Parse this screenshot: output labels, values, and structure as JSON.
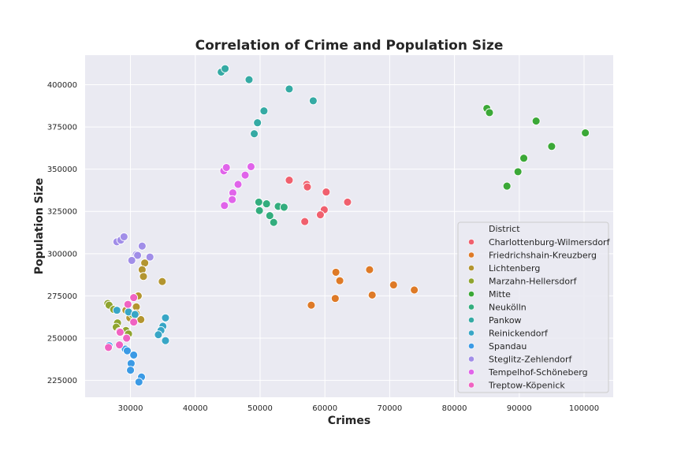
{
  "chart_data": {
    "type": "scatter",
    "title": "Correlation of Crime and Population Size",
    "xlabel": "Crimes",
    "ylabel": "Population Size",
    "xlim": [
      23000,
      104500
    ],
    "ylim": [
      215000,
      417500
    ],
    "xticks": [
      30000,
      40000,
      50000,
      60000,
      70000,
      80000,
      90000,
      100000
    ],
    "yticks": [
      225000,
      250000,
      275000,
      300000,
      325000,
      350000,
      375000,
      400000
    ],
    "grid": true,
    "legend": {
      "title": "District",
      "position": "lower-right"
    },
    "series": [
      {
        "name": "Charlottenburg-Wilmersdorf",
        "color": "#f0606e",
        "points": [
          [
            54500,
            343500
          ],
          [
            57200,
            341000
          ],
          [
            57300,
            339500
          ],
          [
            60200,
            336500
          ],
          [
            63500,
            330500
          ],
          [
            59900,
            326000
          ],
          [
            59300,
            323000
          ],
          [
            56900,
            319000
          ]
        ]
      },
      {
        "name": "Friedrichshain-Kreuzberg",
        "color": "#de7a27",
        "points": [
          [
            61700,
            289000
          ],
          [
            66900,
            290500
          ],
          [
            62300,
            284000
          ],
          [
            70600,
            281500
          ],
          [
            73800,
            278500
          ],
          [
            67300,
            275500
          ],
          [
            61600,
            273500
          ],
          [
            57900,
            269500
          ]
        ]
      },
      {
        "name": "Lichtenberg",
        "color": "#b39530",
        "points": [
          [
            32200,
            294500
          ],
          [
            31800,
            290500
          ],
          [
            34900,
            283500
          ],
          [
            32000,
            286500
          ],
          [
            31200,
            275000
          ],
          [
            30900,
            268500
          ],
          [
            31600,
            261000
          ],
          [
            29300,
            266500
          ],
          [
            30900,
            264500
          ],
          [
            29900,
            262000
          ]
        ]
      },
      {
        "name": "Marzahn-Hellersdorf",
        "color": "#8fa42f",
        "points": [
          [
            26500,
            270500
          ],
          [
            26700,
            269500
          ],
          [
            27400,
            267000
          ],
          [
            28000,
            259000
          ],
          [
            27800,
            256500
          ],
          [
            29300,
            254500
          ],
          [
            29700,
            252500
          ],
          [
            30300,
            264000
          ]
        ]
      },
      {
        "name": "Mitte",
        "color": "#3ba837",
        "points": [
          [
            85000,
            386000
          ],
          [
            85400,
            383500
          ],
          [
            92600,
            378500
          ],
          [
            100200,
            371500
          ],
          [
            95000,
            363500
          ],
          [
            90700,
            356500
          ],
          [
            89800,
            348500
          ],
          [
            88100,
            340000
          ]
        ]
      },
      {
        "name": "Neukölln",
        "color": "#33ad7e",
        "points": [
          [
            49800,
            330500
          ],
          [
            51000,
            329500
          ],
          [
            52800,
            328000
          ],
          [
            53700,
            327500
          ],
          [
            49900,
            325500
          ],
          [
            51500,
            322500
          ],
          [
            52100,
            318500
          ]
        ]
      },
      {
        "name": "Pankow",
        "color": "#35aaa4",
        "points": [
          [
            44000,
            407500
          ],
          [
            44600,
            409500
          ],
          [
            48300,
            403000
          ],
          [
            54500,
            397500
          ],
          [
            58200,
            390500
          ],
          [
            50600,
            384500
          ],
          [
            49600,
            377500
          ],
          [
            49100,
            371000
          ]
        ]
      },
      {
        "name": "Reinickendorf",
        "color": "#38a6c6",
        "points": [
          [
            27900,
            266500
          ],
          [
            29700,
            265500
          ],
          [
            30700,
            264000
          ],
          [
            35400,
            262000
          ],
          [
            35000,
            257000
          ],
          [
            34700,
            254500
          ],
          [
            34300,
            252000
          ],
          [
            35400,
            248500
          ]
        ]
      },
      {
        "name": "Spandau",
        "color": "#3b9ae5",
        "points": [
          [
            26700,
            245500
          ],
          [
            29200,
            243500
          ],
          [
            29500,
            242500
          ],
          [
            30500,
            240000
          ],
          [
            30100,
            235000
          ],
          [
            30000,
            231000
          ],
          [
            31700,
            227000
          ],
          [
            31300,
            224000
          ]
        ]
      },
      {
        "name": "Steglitz-Zehlendorf",
        "color": "#a18ee8",
        "points": [
          [
            27900,
            307000
          ],
          [
            28500,
            308000
          ],
          [
            29000,
            310000
          ],
          [
            31800,
            304500
          ],
          [
            30900,
            299500
          ],
          [
            31100,
            299000
          ],
          [
            33000,
            298000
          ],
          [
            30200,
            296000
          ]
        ]
      },
      {
        "name": "Tempelhof-Schöneberg",
        "color": "#e064ea",
        "points": [
          [
            44400,
            349000
          ],
          [
            44800,
            351000
          ],
          [
            48600,
            351500
          ],
          [
            47700,
            346500
          ],
          [
            46600,
            341000
          ],
          [
            45800,
            336000
          ],
          [
            45700,
            332000
          ],
          [
            44500,
            328500
          ]
        ]
      },
      {
        "name": "Treptow-Köpenick",
        "color": "#f063c2",
        "points": [
          [
            30500,
            274000
          ],
          [
            29600,
            270000
          ],
          [
            30500,
            259500
          ],
          [
            28300,
            254000
          ],
          [
            29400,
            250000
          ],
          [
            28300,
            246000
          ],
          [
            26600,
            244500
          ],
          [
            28400,
            253500
          ]
        ]
      }
    ]
  }
}
